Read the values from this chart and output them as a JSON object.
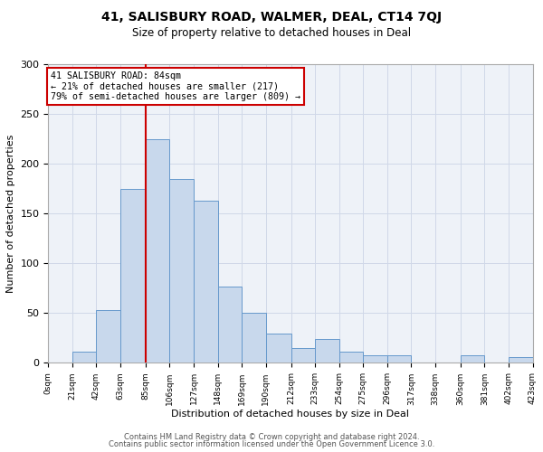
{
  "title": "41, SALISBURY ROAD, WALMER, DEAL, CT14 7QJ",
  "subtitle": "Size of property relative to detached houses in Deal",
  "xlabel": "Distribution of detached houses by size in Deal",
  "ylabel": "Number of detached properties",
  "bin_edges": [
    0,
    21,
    42,
    63,
    85,
    106,
    127,
    148,
    169,
    190,
    212,
    233,
    254,
    275,
    296,
    317,
    338,
    360,
    381,
    402,
    423
  ],
  "bar_heights": [
    0,
    11,
    53,
    175,
    225,
    185,
    163,
    77,
    50,
    29,
    15,
    24,
    11,
    8,
    8,
    0,
    0,
    8,
    0,
    6
  ],
  "bar_color": "#c8d8ec",
  "bar_edge_color": "#6699cc",
  "vline_x": 85,
  "vline_color": "#cc0000",
  "annotation_text": "41 SALISBURY ROAD: 84sqm\n← 21% of detached houses are smaller (217)\n79% of semi-detached houses are larger (809) →",
  "annotation_box_edge_color": "#cc0000",
  "ylim": [
    0,
    300
  ],
  "yticks": [
    0,
    50,
    100,
    150,
    200,
    250,
    300
  ],
  "xtick_labels": [
    "0sqm",
    "21sqm",
    "42sqm",
    "63sqm",
    "85sqm",
    "106sqm",
    "127sqm",
    "148sqm",
    "169sqm",
    "190sqm",
    "212sqm",
    "233sqm",
    "254sqm",
    "275sqm",
    "296sqm",
    "317sqm",
    "338sqm",
    "360sqm",
    "381sqm",
    "402sqm",
    "423sqm"
  ],
  "footer_line1": "Contains HM Land Registry data © Crown copyright and database right 2024.",
  "footer_line2": "Contains public sector information licensed under the Open Government Licence 3.0.",
  "background_color": "#ffffff",
  "axes_bg_color": "#eef2f8",
  "grid_color": "#d0d8e8",
  "title_fontsize": 10,
  "subtitle_fontsize": 8.5
}
